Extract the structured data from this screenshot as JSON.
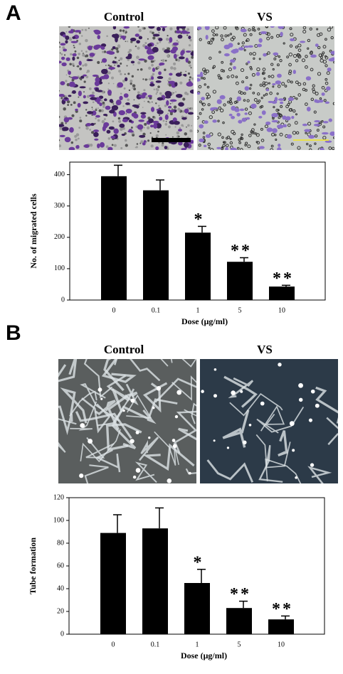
{
  "panels": [
    {
      "label": "A",
      "images": [
        "Control",
        "VS"
      ]
    },
    {
      "label": "B",
      "images": [
        "Control",
        "VS"
      ]
    }
  ],
  "chart_data": [
    {
      "type": "bar",
      "y_label": "No. of migrated cells",
      "x_label": "Dose (μg/ml)",
      "categories": [
        "0",
        "0.1",
        "1",
        "5",
        "10"
      ],
      "values": [
        395,
        350,
        215,
        122,
        43
      ],
      "errors": [
        35,
        33,
        20,
        13,
        4
      ],
      "significance": [
        null,
        null,
        "*",
        "**",
        "**"
      ],
      "color": "#000000",
      "ylim": [
        0,
        440
      ],
      "yticks": [
        0,
        100,
        200,
        300,
        400
      ]
    },
    {
      "type": "bar",
      "y_label": "Tube formation",
      "x_label": "Dose (μg/ml)",
      "categories": [
        "0",
        "0.1",
        "1",
        "5",
        "10"
      ],
      "values": [
        89,
        93,
        45,
        23,
        13
      ],
      "errors": [
        16,
        18,
        12,
        6,
        3
      ],
      "significance": [
        null,
        null,
        "*",
        "**",
        "**"
      ],
      "color": "#000000",
      "ylim": [
        0,
        120
      ],
      "yticks": [
        0,
        20,
        40,
        60,
        80,
        100,
        120
      ]
    }
  ]
}
